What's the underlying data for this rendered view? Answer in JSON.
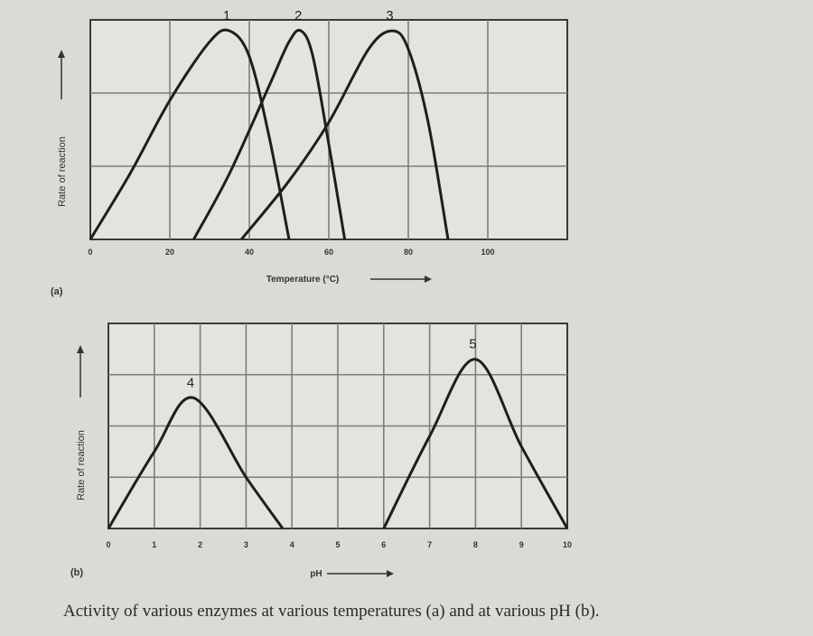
{
  "caption": "Activity of various enzymes at various temperatures (a) and at various pH (b).",
  "chart_data": [
    {
      "type": "line",
      "panel_label": "(a)",
      "xlabel": "Temperature (°C)",
      "ylabel": "Rate of reaction",
      "xlim": [
        0,
        120
      ],
      "ylim": [
        0,
        3
      ],
      "x_ticks": [
        0,
        20,
        40,
        60,
        80,
        100
      ],
      "x_tick_labels": [
        "0",
        "20",
        "40",
        "60",
        "80",
        "100"
      ],
      "grid": true,
      "series": [
        {
          "name": "1",
          "x": [
            0,
            10,
            20,
            30,
            35,
            40,
            45,
            50
          ],
          "y": [
            0,
            0.9,
            1.9,
            2.7,
            2.85,
            2.5,
            1.4,
            0
          ]
        },
        {
          "name": "2",
          "x": [
            26,
            35,
            45,
            50,
            53,
            56,
            60,
            64
          ],
          "y": [
            0,
            0.9,
            2.1,
            2.7,
            2.85,
            2.5,
            1.3,
            0
          ]
        },
        {
          "name": "3",
          "x": [
            38,
            50,
            60,
            70,
            76,
            80,
            85,
            90
          ],
          "y": [
            0,
            0.8,
            1.6,
            2.6,
            2.85,
            2.6,
            1.6,
            0
          ]
        }
      ]
    },
    {
      "type": "line",
      "panel_label": "(b)",
      "xlabel": "pH",
      "ylabel": "Rate of reaction",
      "xlim": [
        0,
        10
      ],
      "ylim": [
        0,
        4
      ],
      "x_ticks": [
        0,
        1,
        2,
        3,
        4,
        5,
        6,
        7,
        8,
        9,
        10
      ],
      "x_tick_labels": [
        "0",
        "1",
        "2",
        "3",
        "4",
        "5",
        "6",
        "7",
        "8",
        "9",
        "10"
      ],
      "grid": true,
      "series": [
        {
          "name": "4",
          "x": [
            0,
            1,
            1.85,
            3,
            3.8
          ],
          "y": [
            0,
            1.5,
            2.55,
            1.0,
            0
          ]
        },
        {
          "name": "5",
          "x": [
            6,
            7,
            8,
            9,
            10
          ],
          "y": [
            0,
            1.8,
            3.3,
            1.6,
            0
          ]
        }
      ]
    }
  ]
}
